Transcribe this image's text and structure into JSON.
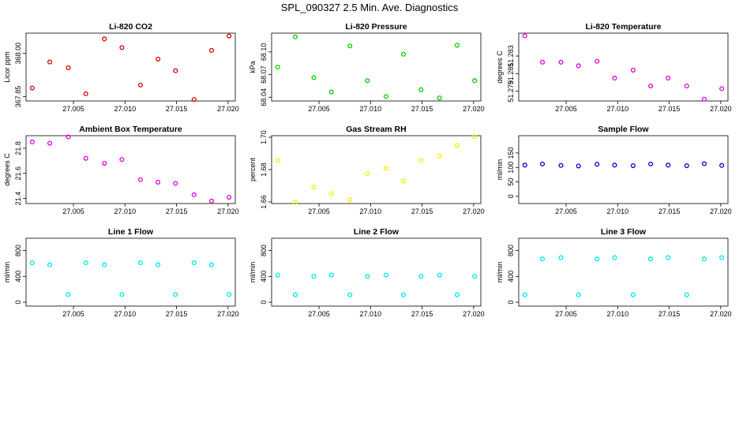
{
  "page_title": "SPL_090327  2.5 Min. Ave. Diagnostics",
  "chart_data": [
    {
      "type": "scatter",
      "title": "Li-820 CO2",
      "ylabel": "Licor ppm",
      "color": "#dd0000",
      "x": [
        27.001,
        27.0027,
        27.0045,
        27.0062,
        27.008,
        27.0097,
        27.0115,
        27.0132,
        27.0149,
        27.0167,
        27.0184,
        27.0201
      ],
      "y": [
        367.88,
        367.97,
        367.95,
        367.86,
        368.05,
        368.02,
        367.89,
        367.98,
        367.94,
        367.84,
        368.01,
        368.06
      ],
      "xlim": [
        27.0004,
        27.0207
      ],
      "ylim": [
        367.835,
        368.07
      ],
      "xticks": [
        "27.005",
        "27.010",
        "27.015",
        "27.020"
      ],
      "xtick_values": [
        27.005,
        27.01,
        27.015,
        27.02
      ],
      "yticks": [
        "367.85",
        "368.00"
      ],
      "ytick_values": [
        367.85,
        368.0
      ]
    },
    {
      "type": "scatter",
      "title": "Li-820 Pressure",
      "ylabel": "kPa",
      "color": "#00cc00",
      "x": [
        27.001,
        27.0027,
        27.0045,
        27.0062,
        27.008,
        27.0097,
        27.0115,
        27.0132,
        27.0149,
        27.0167,
        27.0184,
        27.0201
      ],
      "y": [
        68.08,
        68.12,
        68.066,
        68.047,
        68.108,
        68.062,
        68.041,
        68.097,
        68.05,
        68.039,
        68.109,
        68.062
      ],
      "xlim": [
        27.0004,
        27.0207
      ],
      "ylim": [
        68.035,
        68.125
      ],
      "xticks": [
        "27.005",
        "27.010",
        "27.015",
        "27.020"
      ],
      "xtick_values": [
        27.005,
        27.01,
        27.015,
        27.02
      ],
      "yticks": [
        "68.04",
        "68.07",
        "68.10"
      ],
      "ytick_values": [
        68.04,
        68.07,
        68.1
      ]
    },
    {
      "type": "scatter",
      "title": "Li-820 Temperature",
      "ylabel": "degrees C",
      "color": "#dd00dd",
      "x": [
        27.001,
        27.0027,
        27.0045,
        27.0062,
        27.008,
        27.0097,
        27.0115,
        27.0132,
        27.0149,
        27.0167,
        27.0184,
        27.0201
      ],
      "y": [
        51.2853,
        51.2823,
        51.2823,
        51.2819,
        51.2824,
        51.2805,
        51.2814,
        51.2796,
        51.2805,
        51.2796,
        51.2781,
        51.2793
      ],
      "xlim": [
        27.0004,
        27.0207
      ],
      "ylim": [
        51.2779,
        51.2856
      ],
      "xticks": [
        "27.005",
        "27.010",
        "27.015",
        "27.020"
      ],
      "xtick_values": [
        27.005,
        27.01,
        27.015,
        27.02
      ],
      "yticks": [
        "51.279",
        "51.281",
        "51.283"
      ],
      "ytick_values": [
        51.279,
        51.281,
        51.283
      ]
    },
    {
      "type": "scatter",
      "title": "Ambient Box Temperature",
      "ylabel": "degrees C",
      "color": "#dd00dd",
      "x": [
        27.001,
        27.0027,
        27.0045,
        27.0062,
        27.008,
        27.0097,
        27.0115,
        27.0132,
        27.0149,
        27.0167,
        27.0184,
        27.0201
      ],
      "y": [
        21.85,
        21.84,
        21.89,
        21.72,
        21.68,
        21.71,
        21.55,
        21.53,
        21.52,
        21.43,
        21.38,
        21.41
      ],
      "xlim": [
        27.0004,
        27.0207
      ],
      "ylim": [
        21.36,
        21.9
      ],
      "xticks": [
        "27.005",
        "27.010",
        "27.015",
        "27.020"
      ],
      "xtick_values": [
        27.005,
        27.01,
        27.015,
        27.02
      ],
      "yticks": [
        "21.4",
        "21.6",
        "21.8"
      ],
      "ytick_values": [
        21.4,
        21.6,
        21.8
      ]
    },
    {
      "type": "scatter",
      "title": "Gas Stream RH",
      "ylabel": "percent",
      "color": "#f2f200",
      "x": [
        27.001,
        27.0027,
        27.0045,
        27.0062,
        27.008,
        27.0097,
        27.0115,
        27.0132,
        27.0149,
        27.0167,
        27.0184,
        27.0201
      ],
      "y": [
        1.6857,
        1.6597,
        1.6691,
        1.6652,
        1.6614,
        1.6776,
        1.6807,
        1.6729,
        1.6858,
        1.6884,
        1.695,
        1.7003
      ],
      "xlim": [
        27.0004,
        27.0207
      ],
      "ylim": [
        1.659,
        1.701
      ],
      "xticks": [
        "27.005",
        "27.010",
        "27.015",
        "27.020"
      ],
      "xtick_values": [
        27.005,
        27.01,
        27.015,
        27.02
      ],
      "yticks": [
        "1.66",
        "1.68",
        "1.70"
      ],
      "ytick_values": [
        1.66,
        1.68,
        1.7
      ]
    },
    {
      "type": "scatter",
      "title": "Sample Flow",
      "ylabel": "ml/min",
      "color": "#0000cc",
      "x": [
        27.001,
        27.0027,
        27.0045,
        27.0062,
        27.008,
        27.0097,
        27.0115,
        27.0132,
        27.0149,
        27.0167,
        27.0184,
        27.0201
      ],
      "y": [
        108,
        112,
        107,
        105,
        111,
        108,
        106,
        112,
        108,
        106,
        113,
        107
      ],
      "xlim": [
        27.0004,
        27.0207
      ],
      "ylim": [
        -25,
        210
      ],
      "xticks": [
        "27.005",
        "27.010",
        "27.015",
        "27.020"
      ],
      "xtick_values": [
        27.005,
        27.01,
        27.015,
        27.02
      ],
      "yticks": [
        "0",
        "50",
        "100",
        "150"
      ],
      "ytick_values": [
        0,
        50,
        100,
        150
      ]
    },
    {
      "type": "scatter",
      "title": "Line 1 Flow",
      "ylabel": "ml/min",
      "color": "#00e5e5",
      "x": [
        27.001,
        27.0027,
        27.0045,
        27.0062,
        27.008,
        27.0097,
        27.0115,
        27.0132,
        27.0149,
        27.0167,
        27.0184,
        27.0201
      ],
      "y": [
        610,
        580,
        120,
        610,
        580,
        120,
        610,
        580,
        120,
        610,
        580,
        120
      ],
      "xlim": [
        27.0004,
        27.0207
      ],
      "ylim": [
        -60,
        990
      ],
      "xticks": [
        "27.005",
        "27.010",
        "27.015",
        "27.020"
      ],
      "xtick_values": [
        27.005,
        27.01,
        27.015,
        27.02
      ],
      "yticks": [
        "0",
        "400",
        "800"
      ],
      "ytick_values": [
        0,
        400,
        800
      ]
    },
    {
      "type": "scatter",
      "title": "Line 2 Flow",
      "ylabel": "ml/min",
      "color": "#00e5e5",
      "x": [
        27.001,
        27.0027,
        27.0045,
        27.0062,
        27.008,
        27.0097,
        27.0115,
        27.0132,
        27.0149,
        27.0167,
        27.0184,
        27.0201
      ],
      "y": [
        420,
        115,
        400,
        420,
        115,
        400,
        420,
        115,
        400,
        420,
        115,
        400
      ],
      "xlim": [
        27.0004,
        27.0207
      ],
      "ylim": [
        -60,
        990
      ],
      "xticks": [
        "27.005",
        "27.010",
        "27.015",
        "27.020"
      ],
      "xtick_values": [
        27.005,
        27.01,
        27.015,
        27.02
      ],
      "yticks": [
        "0",
        "400",
        "800"
      ],
      "ytick_values": [
        0,
        400,
        800
      ]
    },
    {
      "type": "scatter",
      "title": "Line 3 Flow",
      "ylabel": "ml/min",
      "color": "#00e5e5",
      "x": [
        27.001,
        27.0027,
        27.0045,
        27.0062,
        27.008,
        27.0097,
        27.0115,
        27.0132,
        27.0149,
        27.0167,
        27.0184,
        27.0201
      ],
      "y": [
        115,
        670,
        690,
        115,
        670,
        690,
        115,
        670,
        690,
        115,
        670,
        690
      ],
      "xlim": [
        27.0004,
        27.0207
      ],
      "ylim": [
        -60,
        990
      ],
      "xticks": [
        "27.005",
        "27.010",
        "27.015",
        "27.020"
      ],
      "xtick_values": [
        27.005,
        27.01,
        27.015,
        27.02
      ],
      "yticks": [
        "0",
        "400",
        "800"
      ],
      "ytick_values": [
        0,
        400,
        800
      ]
    }
  ]
}
